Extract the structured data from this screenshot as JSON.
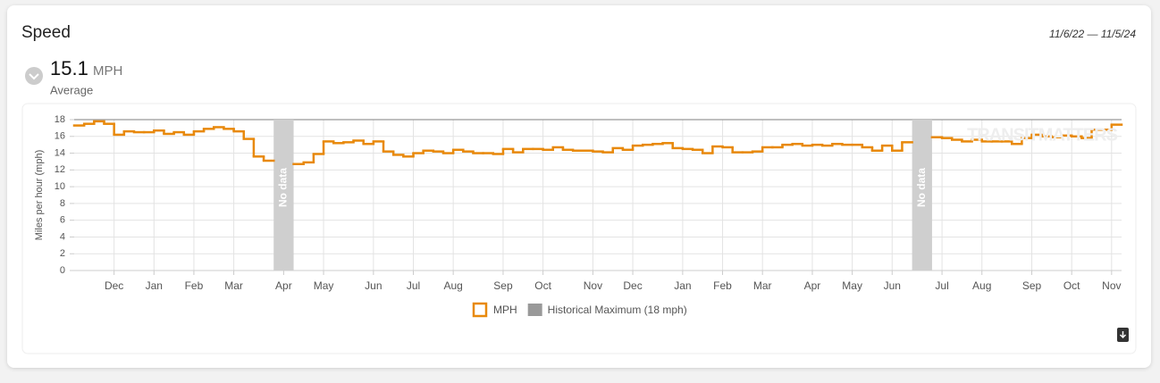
{
  "header": {
    "title": "Speed",
    "date_range": "11/6/22 — 11/5/24",
    "value": 15.1,
    "unit": "MPH",
    "caption": "Average"
  },
  "chart_data": {
    "type": "step",
    "y_label": "Miles per hour (mph)",
    "watermark": "TRANSITMATTERS",
    "gap_label": "No data",
    "categories": [
      null,
      null,
      null,
      null,
      "Dec",
      null,
      null,
      null,
      "Jan",
      null,
      null,
      null,
      "Feb",
      null,
      null,
      null,
      "Mar",
      null,
      null,
      null,
      null,
      "Apr",
      null,
      null,
      null,
      "May",
      null,
      null,
      null,
      null,
      "Jun",
      null,
      null,
      null,
      "Jul",
      null,
      null,
      null,
      "Aug",
      null,
      null,
      null,
      null,
      "Sep",
      null,
      null,
      null,
      "Oct",
      null,
      null,
      null,
      null,
      "Nov",
      null,
      null,
      null,
      "Dec",
      null,
      null,
      null,
      null,
      "Jan",
      null,
      null,
      null,
      "Feb",
      null,
      null,
      null,
      "Mar",
      null,
      null,
      null,
      null,
      "Apr",
      null,
      null,
      null,
      "May",
      null,
      null,
      null,
      "Jun",
      null,
      null,
      null,
      null,
      "Jul",
      null,
      null,
      null,
      "Aug",
      null,
      null,
      null,
      null,
      "Sep",
      null,
      null,
      null,
      "Oct",
      null,
      null,
      null,
      "Nov"
    ],
    "series": [
      {
        "name": "MPH",
        "color": "#e8890c",
        "values": [
          17.3,
          17.5,
          17.8,
          17.5,
          16.2,
          16.6,
          16.5,
          16.5,
          16.7,
          16.3,
          16.5,
          16.2,
          16.6,
          16.9,
          17.1,
          16.9,
          16.6,
          15.7,
          13.6,
          13.1,
          null,
          null,
          12.7,
          12.9,
          13.9,
          15.4,
          15.2,
          15.3,
          15.5,
          15.1,
          15.4,
          14.2,
          13.8,
          13.6,
          14.0,
          14.3,
          14.2,
          14.0,
          14.4,
          14.2,
          14.0,
          14.0,
          13.9,
          14.5,
          14.1,
          14.5,
          14.5,
          14.4,
          14.7,
          14.4,
          14.3,
          14.3,
          14.2,
          14.1,
          14.6,
          14.4,
          14.9,
          15.0,
          15.1,
          15.2,
          14.6,
          14.5,
          14.4,
          14.0,
          14.8,
          14.7,
          14.1,
          14.1,
          14.2,
          14.7,
          14.7,
          15.0,
          15.1,
          14.9,
          15.0,
          14.9,
          15.1,
          15.0,
          15.0,
          14.7,
          14.3,
          14.9,
          14.3,
          15.3,
          null,
          null,
          15.9,
          15.8,
          15.6,
          15.4,
          15.6,
          15.4,
          15.4,
          15.4,
          15.1,
          15.8,
          16.2,
          16.0,
          15.9,
          16.1,
          16.0,
          15.8,
          16.8,
          16.8,
          17.4
        ]
      }
    ],
    "reference": {
      "name": "Historical Maximum (18 mph)",
      "value": 18,
      "color": "#999999"
    },
    "ylim": [
      0,
      18
    ],
    "yticks": [
      0,
      2,
      4,
      6,
      8,
      10,
      12,
      14,
      16,
      18
    ],
    "grid": true
  }
}
